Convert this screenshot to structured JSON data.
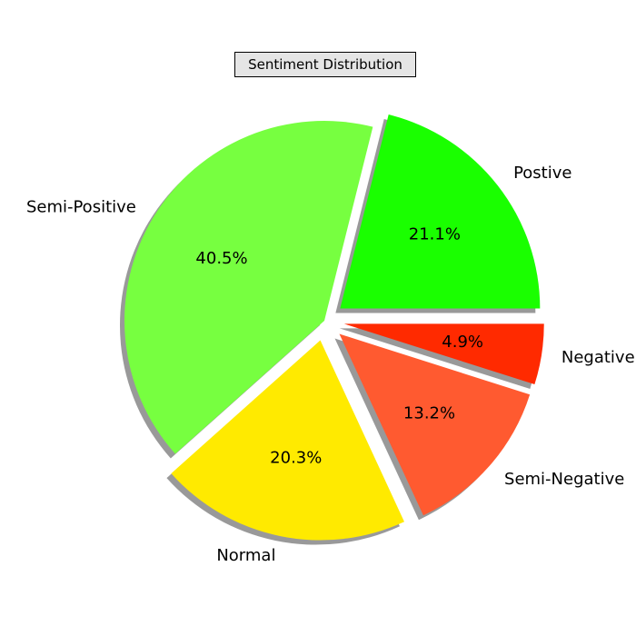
{
  "chart_data": {
    "type": "pie",
    "title": "Sentiment Distribution",
    "categories": [
      "Postive",
      "Semi-Positive",
      "Normal",
      "Semi-Negative",
      "Negative"
    ],
    "values": [
      21.1,
      40.5,
      20.3,
      13.2,
      4.9
    ],
    "percent_labels": [
      "21.1%",
      "40.5%",
      "20.3%",
      "13.2%",
      "4.9%"
    ],
    "colors": [
      "#1aff00",
      "#77ff40",
      "#ffea00",
      "#ff5a30",
      "#ff2a00"
    ],
    "exploded": [
      true,
      false,
      true,
      true,
      true
    ],
    "shadow": true,
    "start_angle_deg": 0,
    "direction": "counterclockwise",
    "legend": "none"
  }
}
